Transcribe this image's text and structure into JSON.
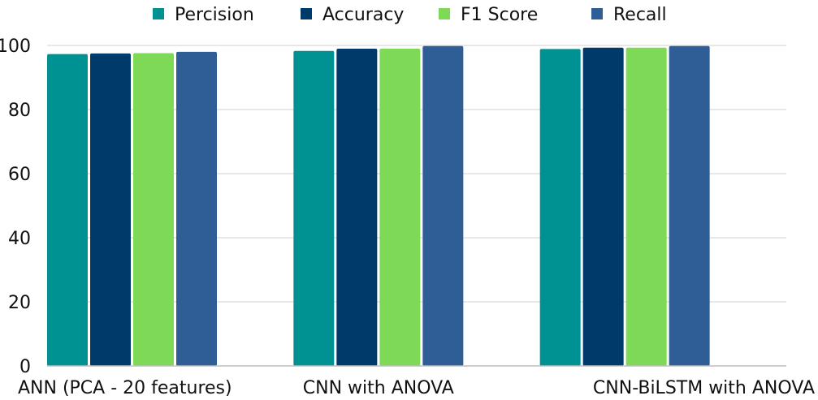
{
  "chart_data": {
    "type": "bar",
    "title": "",
    "xlabel": "",
    "ylabel": "",
    "categories": [
      "ANN (PCA - 20 features)",
      "CNN with ANOVA",
      "CNN-BiLSTM with ANOVA"
    ],
    "series": [
      {
        "name": "Percision",
        "color": "#009193",
        "values": [
          97.3,
          98.3,
          98.9
        ]
      },
      {
        "name": "Accuracy",
        "color": "#003A6B",
        "values": [
          97.5,
          99.0,
          99.3
        ]
      },
      {
        "name": "F1 Score",
        "color": "#7ED957",
        "values": [
          97.6,
          99.0,
          99.3
        ]
      },
      {
        "name": "Recall",
        "color": "#2F5E97",
        "values": [
          98.0,
          99.8,
          99.8
        ]
      }
    ],
    "ylim": [
      0,
      100
    ],
    "yticks": [
      0,
      20,
      40,
      60,
      80,
      100
    ],
    "grid": true,
    "legend_position": "top"
  }
}
